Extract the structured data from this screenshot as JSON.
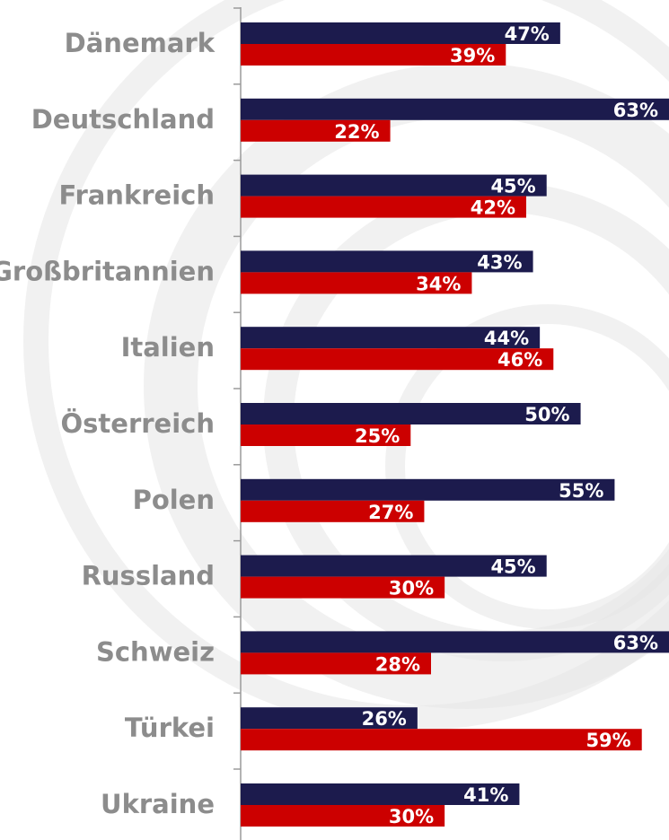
{
  "chart_data": {
    "type": "bar",
    "orientation": "horizontal",
    "title": "",
    "xlabel": "",
    "ylabel": "",
    "xlim": [
      0,
      63
    ],
    "grid": false,
    "legend": "none",
    "categories": [
      "Dänemark",
      "Deutschland",
      "Frankreich",
      "Großbritannien",
      "Italien",
      "Österreich",
      "Polen",
      "Russland",
      "Schweiz",
      "Türkei",
      "Ukraine"
    ],
    "series": [
      {
        "color": "#1c1b4d",
        "values": [
          47,
          63,
          45,
          43,
          44,
          50,
          55,
          45,
          63,
          26,
          41
        ],
        "value_labels": [
          "47%",
          "63%",
          "45%",
          "43%",
          "44%",
          "50%",
          "55%",
          "45%",
          "63%",
          "26%",
          "41%"
        ]
      },
      {
        "color": "#cc0000",
        "values": [
          39,
          22,
          42,
          34,
          46,
          25,
          27,
          30,
          28,
          59,
          30
        ],
        "value_labels": [
          "39%",
          "22%",
          "42%",
          "34%",
          "46%",
          "25%",
          "27%",
          "30%",
          "28%",
          "59%",
          "30%"
        ]
      }
    ],
    "background": {
      "base": "#ffffff",
      "swirl": "#e6e6e6"
    }
  }
}
